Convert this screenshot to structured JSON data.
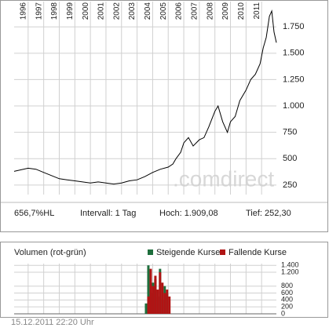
{
  "chart_data": [
    {
      "type": "line",
      "color": "#000000",
      "x": [
        1995.1,
        1996,
        1996.5,
        1997,
        1997.5,
        1998,
        1998.5,
        1999,
        1999.5,
        2000,
        2000.5,
        2001,
        2001.5,
        2002,
        2002.5,
        2003,
        2003.5,
        2004,
        2004.5,
        2005,
        2005.3,
        2005.5,
        2005.8,
        2006,
        2006.3,
        2006.6,
        2007,
        2007.3,
        2007.6,
        2008,
        2008.2,
        2008.5,
        2008.8,
        2009,
        2009.3,
        2009.6,
        2010,
        2010.3,
        2010.6,
        2010.9,
        2011.1,
        2011.3,
        2011.5,
        2011.65,
        2011.8,
        2011.95
      ],
      "values": [
        380,
        410,
        400,
        370,
        340,
        310,
        300,
        290,
        280,
        270,
        280,
        270,
        260,
        270,
        290,
        300,
        330,
        370,
        400,
        420,
        450,
        500,
        560,
        650,
        700,
        620,
        680,
        700,
        800,
        950,
        1000,
        850,
        750,
        850,
        900,
        1050,
        1150,
        1250,
        1300,
        1400,
        1550,
        1650,
        1850,
        1900,
        1700,
        1600
      ],
      "xlim": [
        1995.1,
        2011.95
      ],
      "xticks": [
        1996,
        1997,
        1998,
        1999,
        2000,
        2001,
        2002,
        2003,
        2004,
        2005,
        2006,
        2007,
        2008,
        2009,
        2010,
        2011
      ],
      "ylim": [
        160,
        1930
      ],
      "yticks": [
        250,
        500,
        750,
        {
          "value": 1000,
          "label": "1.000"
        },
        {
          "value": 1250,
          "label": "1.250"
        },
        {
          "value": 1500,
          "label": "1.500"
        },
        {
          "value": 1750,
          "label": "1.750"
        }
      ],
      "grid": true
    },
    {
      "type": "bar",
      "title": "Volumen (rot-grün)",
      "x": [
        2003.65,
        2003.8,
        2003.95,
        2004.1,
        2004.25,
        2004.4,
        2004.55,
        2004.7,
        2004.85,
        2005.0
      ],
      "series": [
        {
          "name": "Steigende Kurse",
          "color": "#1e6e3c",
          "values": [
            300,
            1400,
            600,
            900,
            1000,
            500,
            1300,
            400,
            800,
            600
          ]
        },
        {
          "name": "Fallende Kurse",
          "color": "#b01414",
          "values": [
            500,
            1300,
            800,
            1100,
            700,
            1200,
            900,
            600,
            700,
            500
          ]
        }
      ],
      "xlim": [
        1995.1,
        2011.95
      ],
      "ylim": [
        0,
        1450
      ],
      "yticks": [
        0,
        200,
        400,
        600,
        800,
        {
          "value": 1200,
          "label": "1.200"
        },
        {
          "value": 1400,
          "label": "1.400"
        }
      ],
      "grid": true
    }
  ],
  "info": [
    "656,7%HL",
    "Intervall: 1 Tag",
    "Hoch:  1.909,08",
    "Tief:  252,30"
  ],
  "watermark": ".comdirect",
  "timestamp": "15.12.2011 22:20 Uhr"
}
